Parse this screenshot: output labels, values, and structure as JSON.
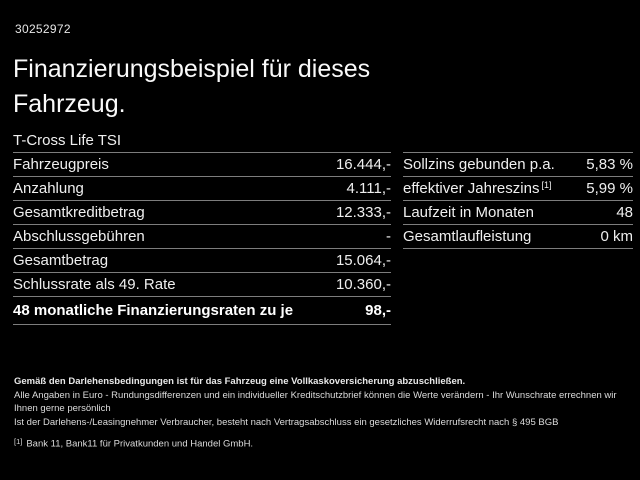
{
  "meta": {
    "background_color": "#000000",
    "text_color": "#f1f1f1",
    "divider_color": "#7d7d7d"
  },
  "header": {
    "vehicle_id": "30252972",
    "title": "Finanzierungsbeispiel für dieses Fahrzeug."
  },
  "vehicle": {
    "model": "T-Cross Life TSI"
  },
  "finance": {
    "rows": [
      {
        "label": "Fahrzeugpreis",
        "value": "16.444,-"
      },
      {
        "label": "Anzahlung",
        "value": "4.111,-"
      },
      {
        "label": "Gesamtkreditbetrag",
        "value": "12.333,-"
      },
      {
        "label": "Abschlussgebühren",
        "value": "-"
      },
      {
        "label": "Gesamtbetrag",
        "value": "15.064,-"
      },
      {
        "label": "Schlussrate als 49. Rate",
        "value": "10.360,-"
      },
      {
        "label": "48 monatliche Finanzierungsraten zu je",
        "value": "98,-"
      }
    ]
  },
  "conditions": {
    "rows": [
      {
        "label": "Sollzins gebunden p.a.",
        "sup": "",
        "value": "5,83 %"
      },
      {
        "label": "effektiver Jahreszins",
        "sup": "[1]",
        "value": "5,99 %"
      },
      {
        "label": "Laufzeit in Monaten",
        "sup": "",
        "value": "48"
      },
      {
        "label": "Gesamtlaufleistung",
        "sup": "",
        "value": "0 km"
      }
    ]
  },
  "footer": {
    "insurance_note": "Gemäß den Darlehensbedingungen ist für das Fahrzeug eine Vollkaskoversicherung abzuschließen.",
    "disclaimer1": "Alle Angaben in Euro - Rundungsdifferenzen und ein individueller Kreditschutzbrief können die Werte verändern - Ihr Wunschrate errechnen wir Ihnen gerne persönlich",
    "disclaimer2": "Ist der Darlehens-/Leasingnehmer Verbraucher, besteht nach Vertragsabschluss ein gesetzliches Widerrufsrecht nach § 495 BGB",
    "footnote_marker": "[1]",
    "footnote": "Bank 11, Bank11 für Privatkunden und Handel GmbH."
  }
}
